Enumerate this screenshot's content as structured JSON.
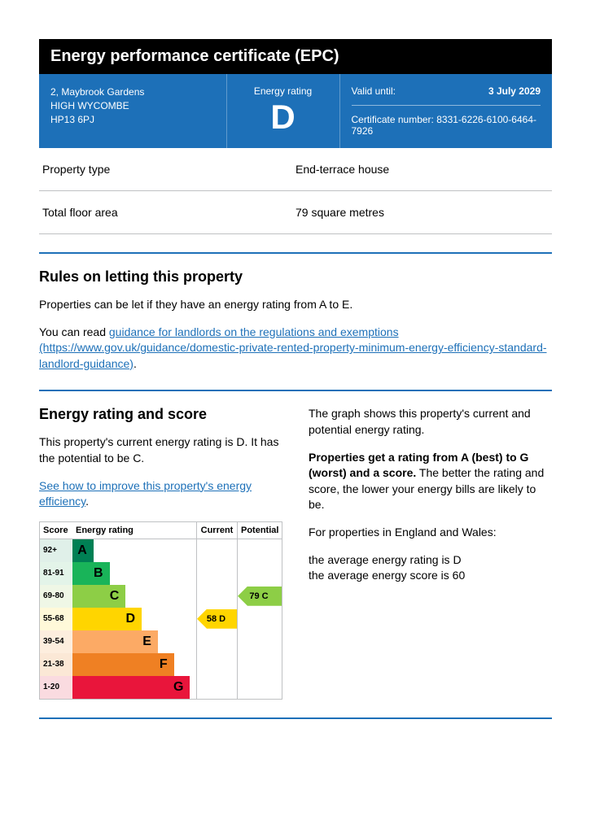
{
  "title": "Energy performance certificate (EPC)",
  "address": {
    "line1": "2, Maybrook Gardens",
    "line2": "HIGH WYCOMBE",
    "postcode": "HP13 6PJ"
  },
  "energy_rating": {
    "label": "Energy rating",
    "letter": "D"
  },
  "valid": {
    "label": "Valid until:",
    "value": "3 July 2029"
  },
  "cert": {
    "label": "Certificate number:",
    "value": "8331-6226-6100-6464-7926"
  },
  "property_rows": [
    {
      "label": "Property type",
      "value": "End-terrace house"
    },
    {
      "label": "Total floor area",
      "value": "79 square metres"
    }
  ],
  "letting": {
    "heading": "Rules on letting this property",
    "p1": "Properties can be let if they have an energy rating from A to E.",
    "p2_pre": "You can read ",
    "p2_link": "guidance for landlords on the regulations and exemptions (https://www.gov.uk/guidance/domestic-private-rented-property-minimum-energy-efficiency-standard-landlord-guidance)",
    "p2_post": "."
  },
  "rating_section": {
    "heading": "Energy rating and score",
    "p1": "This property's current energy rating is D. It has the potential to be C.",
    "link": "See how to improve this property's energy efficiency",
    "link_post": ".",
    "right_p1": "The graph shows this property's current and potential energy rating.",
    "right_p2_bold": "Properties get a rating from A (best) to G (worst) and a score.",
    "right_p2_rest": " The better the rating and score, the lower your energy bills are likely to be.",
    "right_p3": "For properties in England and Wales:",
    "right_p4a": "the average energy rating is D",
    "right_p4b": "the average energy score is 60"
  },
  "chart": {
    "headers": {
      "score": "Score",
      "rating": "Energy rating",
      "current": "Current",
      "potential": "Potential"
    },
    "bands": [
      {
        "range": "92+",
        "letter": "A",
        "width_pct": 17,
        "bg": "#008054",
        "score_bg": "#e0f0e9"
      },
      {
        "range": "81-91",
        "letter": "B",
        "width_pct": 30,
        "bg": "#19b459",
        "score_bg": "#e3f4e9"
      },
      {
        "range": "69-80",
        "letter": "C",
        "width_pct": 43,
        "bg": "#8dce46",
        "score_bg": "#eff7e6"
      },
      {
        "range": "55-68",
        "letter": "D",
        "width_pct": 56,
        "bg": "#ffd500",
        "score_bg": "#fff9d9"
      },
      {
        "range": "39-54",
        "letter": "E",
        "width_pct": 69,
        "bg": "#fcaa65",
        "score_bg": "#fdeede"
      },
      {
        "range": "21-38",
        "letter": "F",
        "width_pct": 82,
        "bg": "#ef8023",
        "score_bg": "#fbe8d6"
      },
      {
        "range": "1-20",
        "letter": "G",
        "width_pct": 95,
        "bg": "#e9153b",
        "score_bg": "#fadbe0"
      }
    ],
    "current": {
      "score": 58,
      "letter": "D",
      "band_index": 3,
      "bg": "#ffd500"
    },
    "potential": {
      "score": 79,
      "letter": "C",
      "band_index": 2,
      "bg": "#8dce46"
    }
  }
}
